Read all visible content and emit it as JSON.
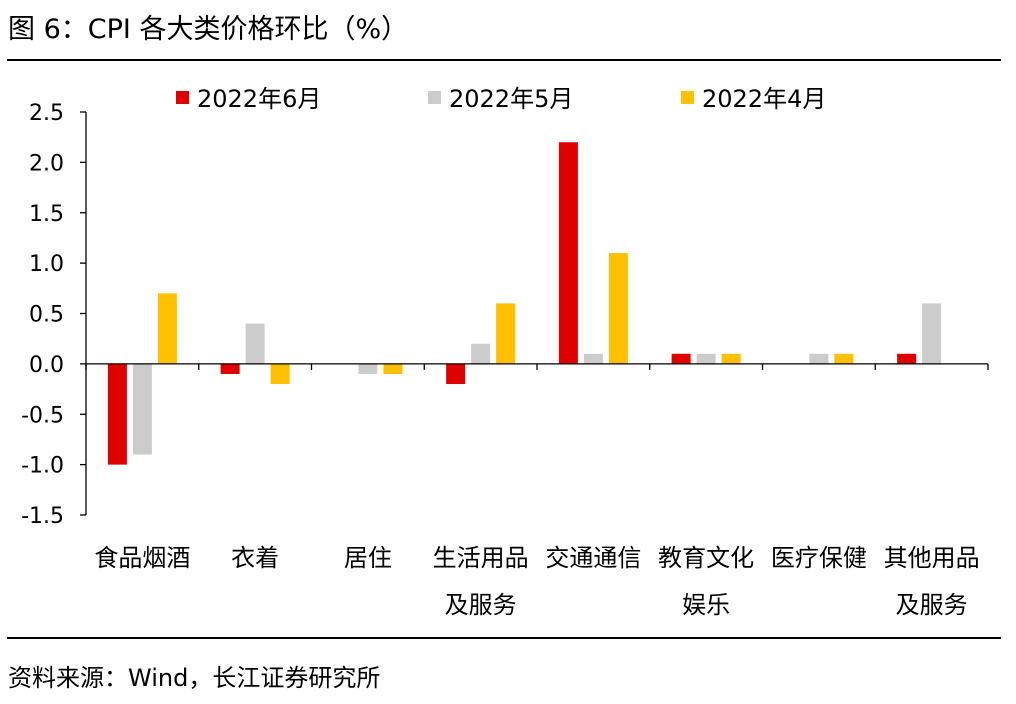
{
  "figure": {
    "title": "图 6：CPI 各大类价格环比（%）",
    "source": "资料来源：Wind，长江证券研究所"
  },
  "chart_data": {
    "type": "bar",
    "categories": [
      [
        "食品烟酒"
      ],
      [
        "衣着"
      ],
      [
        "居住"
      ],
      [
        "生活用品",
        "及服务"
      ],
      [
        "交通通信"
      ],
      [
        "教育文化",
        "娱乐"
      ],
      [
        "医疗保健"
      ],
      [
        "其他用品",
        "及服务"
      ]
    ],
    "series": [
      {
        "name": "2022年6月",
        "color": "#e00000",
        "values": [
          -1.0,
          -0.1,
          0.0,
          -0.2,
          2.2,
          0.1,
          0.0,
          0.1
        ]
      },
      {
        "name": "2022年5月",
        "color": "#cccccc",
        "values": [
          -0.9,
          0.4,
          -0.1,
          0.2,
          0.1,
          0.1,
          0.1,
          0.6
        ]
      },
      {
        "name": "2022年4月",
        "color": "#ffc000",
        "values": [
          0.7,
          -0.2,
          -0.1,
          0.6,
          1.1,
          0.1,
          0.1,
          0.0
        ]
      }
    ],
    "ylim": [
      -1.5,
      2.5
    ],
    "yticks": [
      "-1.5",
      "-1.0",
      "-0.5",
      "0.0",
      "0.5",
      "1.0",
      "1.5",
      "2.0",
      "2.5"
    ],
    "legend_position": "top",
    "grid": false
  }
}
